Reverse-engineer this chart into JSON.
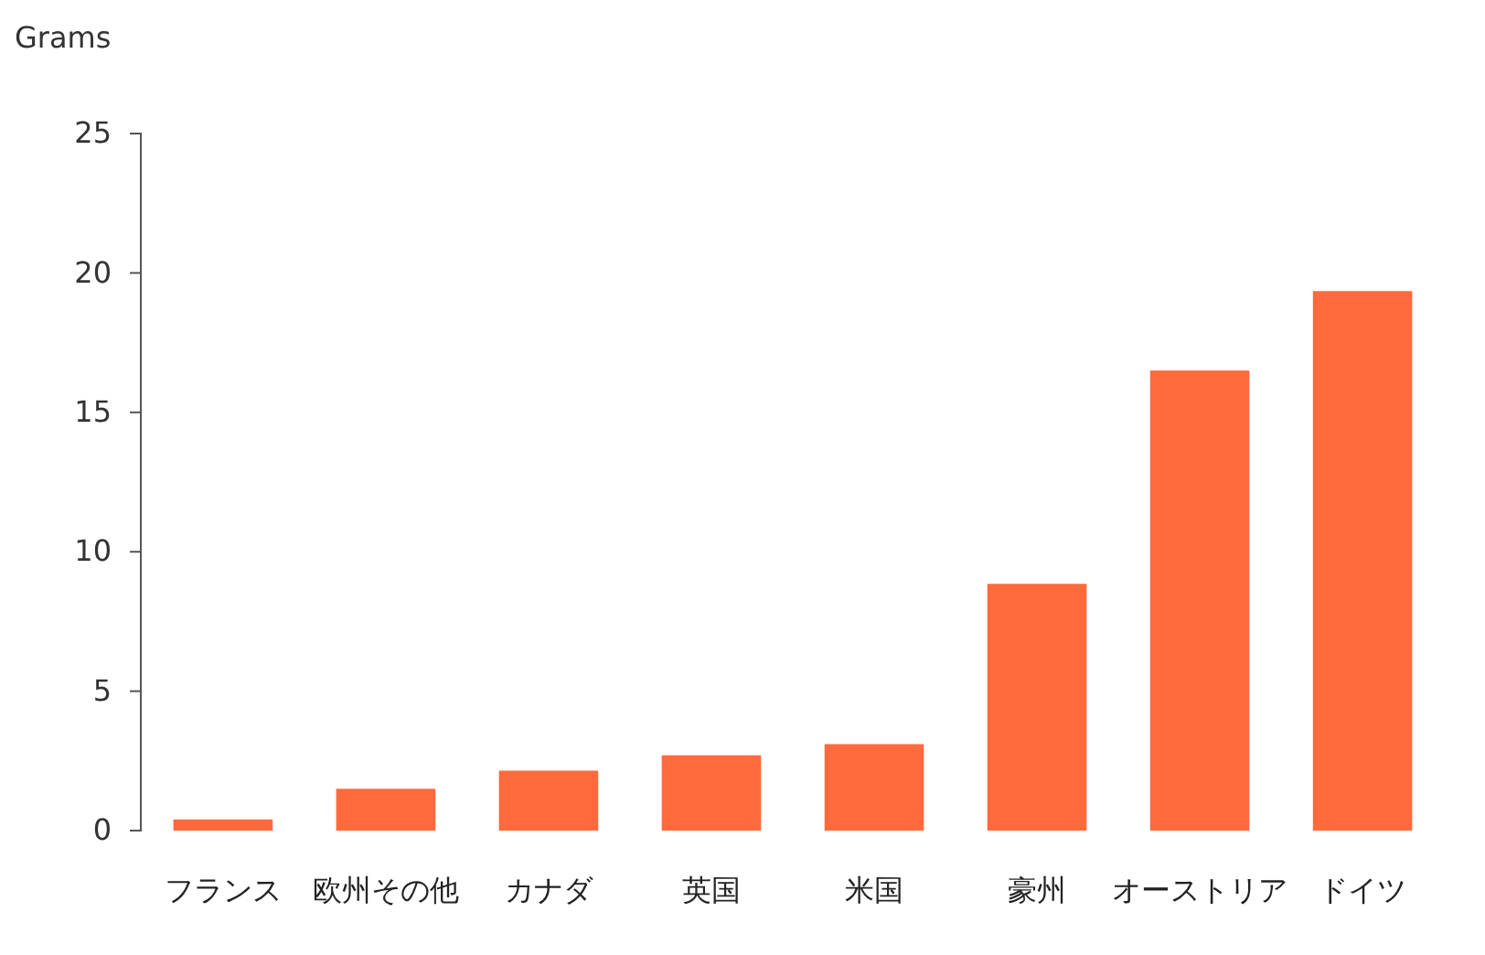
{
  "chart_data": {
    "type": "bar",
    "ylabel": "Grams",
    "categories": [
      "フランス",
      "欧州その他",
      "カナダ",
      "英国",
      "米国",
      "豪州",
      "オーストリア",
      "ドイツ"
    ],
    "values": [
      0.4,
      1.5,
      2.15,
      2.7,
      3.1,
      8.85,
      16.5,
      19.35
    ],
    "color": "#ff6a3d",
    "ylim": [
      0,
      25
    ],
    "yticks": [
      0,
      5,
      10,
      15,
      20,
      25
    ],
    "grid": false
  }
}
